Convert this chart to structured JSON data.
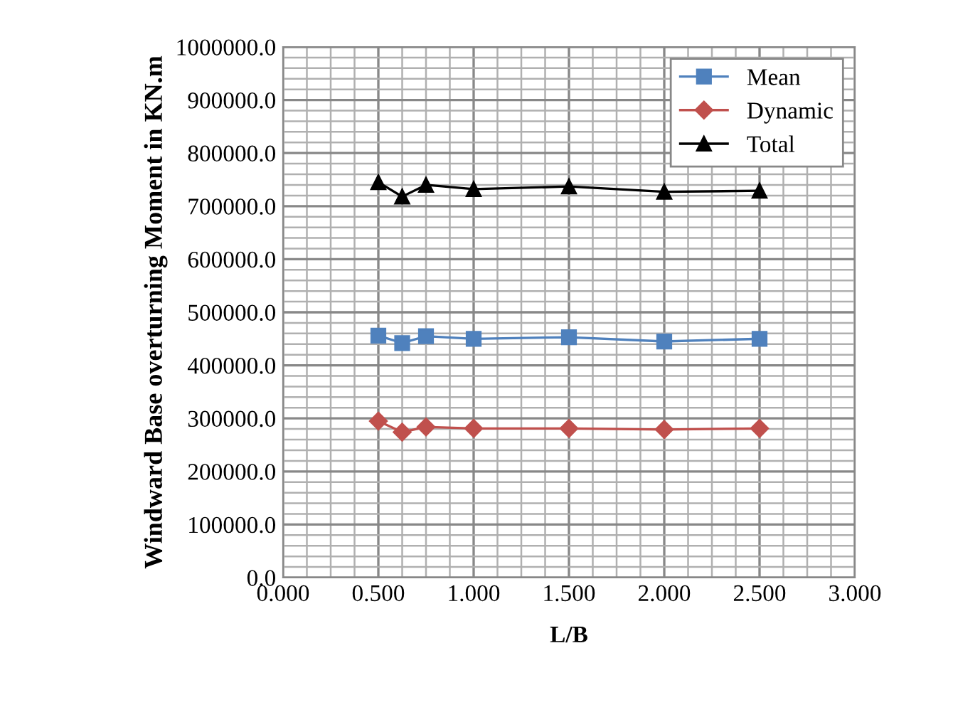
{
  "chart_data": {
    "type": "line",
    "xlabel": "L/B",
    "ylabel": "Windward Base overturning Moment in KN.m",
    "x": [
      0.5,
      0.625,
      0.75,
      1.0,
      1.5,
      2.0,
      2.5
    ],
    "series": [
      {
        "name": "Mean",
        "color": "#4f81bd",
        "marker": "square",
        "values": [
          456000,
          442000,
          455000,
          450000,
          453000,
          445000,
          450000
        ]
      },
      {
        "name": "Dynamic",
        "color": "#c0504d",
        "marker": "diamond",
        "values": [
          295000,
          274000,
          284000,
          281000,
          281000,
          279000,
          281000
        ]
      },
      {
        "name": "Total",
        "color": "#000000",
        "marker": "triangle",
        "values": [
          745000,
          718000,
          740000,
          732000,
          737000,
          727000,
          729000
        ]
      }
    ],
    "xlim": [
      0,
      3
    ],
    "xticks": [
      {
        "value": 0,
        "label": "0.000"
      },
      {
        "value": 0.5,
        "label": "0.500"
      },
      {
        "value": 1,
        "label": "1.000"
      },
      {
        "value": 1.5,
        "label": "1.500"
      },
      {
        "value": 2,
        "label": "2.000"
      },
      {
        "value": 2.5,
        "label": "2.500"
      },
      {
        "value": 3,
        "label": "3.000"
      }
    ],
    "ylim": [
      0,
      1000000
    ],
    "yticks": [
      {
        "value": 0,
        "label": "0.0"
      },
      {
        "value": 100000,
        "label": "100000.0"
      },
      {
        "value": 200000,
        "label": "200000.0"
      },
      {
        "value": 300000,
        "label": "300000.0"
      },
      {
        "value": 400000,
        "label": "400000.0"
      },
      {
        "value": 500000,
        "label": "500000.0"
      },
      {
        "value": 600000,
        "label": "600000.0"
      },
      {
        "value": 700000,
        "label": "700000.0"
      },
      {
        "value": 800000,
        "label": "800000.0"
      },
      {
        "value": 900000,
        "label": "900000.0"
      },
      {
        "value": 1000000,
        "label": "1000000.0"
      }
    ],
    "grid": true,
    "legend": "top right"
  }
}
